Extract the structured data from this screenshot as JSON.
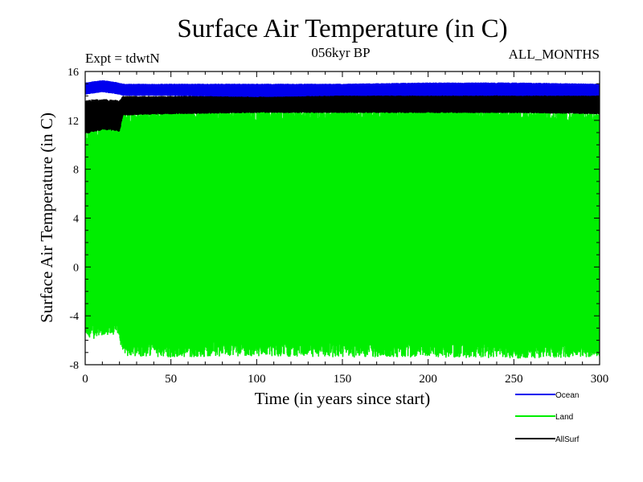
{
  "chart_data": {
    "type": "line",
    "title": "Surface Air Temperature (in C)",
    "subtitle": "056kyr BP",
    "experiment_label": "Expt = tdwtN",
    "months_label": "ALL_MONTHS",
    "xlabel": "Time (in years since start)",
    "ylabel": "Surface Air Temperature (in C)",
    "xlim": [
      0,
      300
    ],
    "ylim": [
      -8,
      16
    ],
    "x_ticks": [
      0,
      50,
      100,
      150,
      200,
      250,
      300
    ],
    "y_ticks": [
      -8,
      -4,
      0,
      4,
      8,
      12,
      16
    ],
    "x_tick_labels": [
      "0",
      "50",
      "100",
      "150",
      "200",
      "250",
      "300"
    ],
    "y_tick_labels": [
      "-8",
      "-4",
      "0",
      "4",
      "8",
      "12",
      "16"
    ],
    "legend_position": "bottom-right, below plot",
    "series": [
      {
        "name": "Land",
        "color": "#00ee00",
        "note": "monthly values oscillating between seasonal min and max",
        "breakpoints_years": [
          0,
          5,
          10,
          15,
          20,
          22,
          50,
          100,
          150,
          200,
          250,
          300
        ],
        "approx_max": [
          10.5,
          11.0,
          11.2,
          11.2,
          11.0,
          12.2,
          12.5,
          12.5,
          12.5,
          12.7,
          12.5,
          12.3
        ],
        "approx_min": [
          -5.0,
          -5.2,
          -5.0,
          -4.8,
          -5.2,
          -6.5,
          -6.6,
          -6.5,
          -6.6,
          -6.6,
          -6.7,
          -6.6
        ]
      },
      {
        "name": "AllSurf",
        "color": "#000000",
        "note": "monthly values oscillating between seasonal min and max",
        "breakpoints_years": [
          0,
          5,
          10,
          15,
          20,
          22,
          50,
          100,
          150,
          200,
          250,
          300
        ],
        "approx_max": [
          13.5,
          13.6,
          13.6,
          13.6,
          13.5,
          13.9,
          13.9,
          14.0,
          14.0,
          14.1,
          14.1,
          14.0
        ],
        "approx_min": [
          11.0,
          11.2,
          11.3,
          11.3,
          11.2,
          12.5,
          12.6,
          12.7,
          12.7,
          12.7,
          12.7,
          12.6
        ]
      },
      {
        "name": "Ocean",
        "color": "#0000ee",
        "note": "monthly values oscillating between seasonal min and max",
        "breakpoints_years": [
          0,
          5,
          10,
          15,
          20,
          22,
          50,
          100,
          150,
          200,
          250,
          300
        ],
        "approx_max": [
          15.0,
          15.1,
          15.2,
          15.1,
          15.0,
          14.9,
          14.9,
          14.9,
          14.9,
          15.0,
          15.0,
          14.9
        ],
        "approx_min": [
          14.2,
          14.3,
          14.4,
          14.3,
          14.2,
          14.1,
          14.1,
          14.0,
          14.1,
          14.1,
          14.1,
          14.1
        ]
      }
    ],
    "legend": [
      {
        "name": "Ocean",
        "color": "#0000ee"
      },
      {
        "name": "Land",
        "color": "#00ee00"
      },
      {
        "name": "AllSurf",
        "color": "#000000"
      }
    ]
  }
}
